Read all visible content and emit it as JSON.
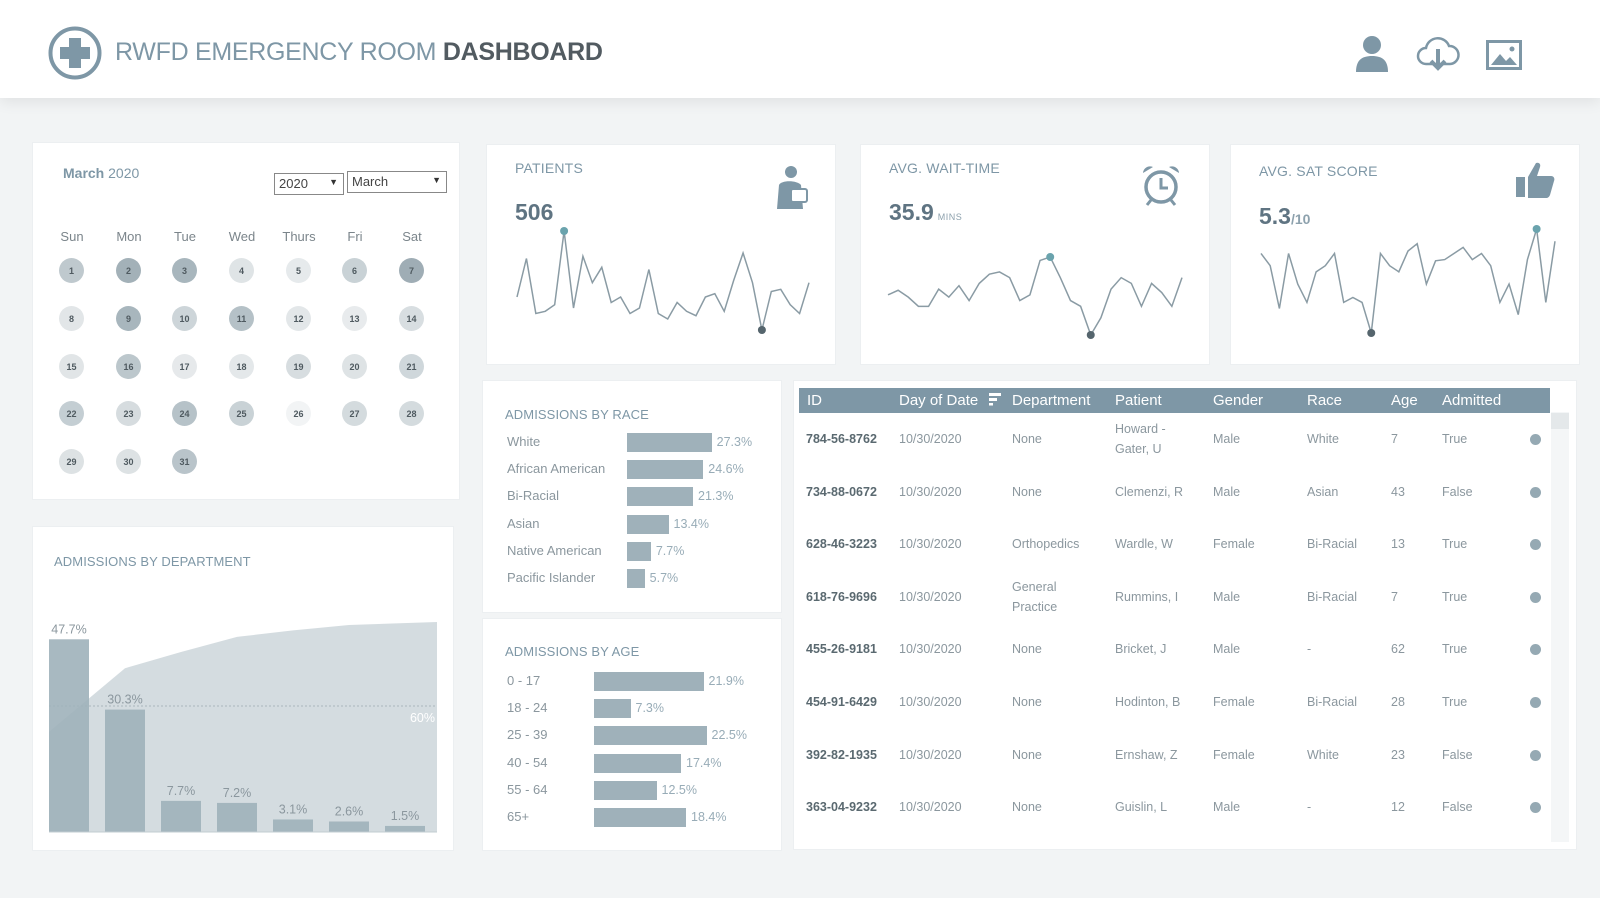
{
  "header": {
    "title_light": "RWFD EMERGENCY ROOM",
    "title_bold": "DASHBOARD",
    "icons": [
      "medical-cross-icon",
      "user-icon",
      "cloud-download-icon",
      "image-icon"
    ]
  },
  "calendar": {
    "month": "March",
    "year": "2020",
    "year_select": "2020",
    "month_select": "March",
    "weekdays": [
      "Sun",
      "Mon",
      "Tue",
      "Wed",
      "Thurs",
      "Fri",
      "Sat"
    ],
    "days": [
      "1",
      "2",
      "3",
      "4",
      "5",
      "6",
      "7",
      "8",
      "9",
      "10",
      "11",
      "12",
      "13",
      "14",
      "15",
      "16",
      "17",
      "18",
      "19",
      "20",
      "21",
      "22",
      "23",
      "24",
      "25",
      "26",
      "27",
      "28",
      "29",
      "30",
      "31"
    ]
  },
  "kpis": {
    "patients": {
      "label": "PATIENTS",
      "value": "506",
      "icon": "patient-icon",
      "series": [
        35,
        70,
        20,
        22,
        28,
        95,
        25,
        72,
        48,
        62,
        30,
        35,
        20,
        25,
        60,
        20,
        15,
        30,
        22,
        18,
        35,
        38,
        22,
        50,
        75,
        48,
        5,
        40,
        42,
        28,
        20,
        48
      ]
    },
    "wait": {
      "label": "AVG. WAIT-TIME",
      "value": "35.9",
      "unit": "MINS",
      "icon": "alarm-clock-icon",
      "series": [
        40,
        44,
        38,
        30,
        30,
        45,
        38,
        48,
        35,
        50,
        58,
        60,
        55,
        35,
        40,
        70,
        73,
        55,
        35,
        30,
        5,
        20,
        45,
        55,
        50,
        30,
        50,
        42,
        30,
        55
      ]
    },
    "sat": {
      "label": "AVG. SAT SCORE",
      "value": "5.3",
      "unit": "/10",
      "icon": "thumbs-up-icon",
      "series": [
        80,
        70,
        35,
        80,
        55,
        40,
        65,
        70,
        80,
        40,
        44,
        40,
        15,
        80,
        70,
        65,
        82,
        88,
        55,
        74,
        75,
        80,
        85,
        75,
        80,
        70,
        40,
        55,
        30,
        75,
        100,
        40,
        90
      ]
    }
  },
  "race": {
    "title": "ADMISSIONS BY RACE",
    "items": [
      {
        "label": "White",
        "value": 27.3,
        "text": "27.3%"
      },
      {
        "label": "African American",
        "value": 24.6,
        "text": "24.6%"
      },
      {
        "label": "Bi-Racial",
        "value": 21.3,
        "text": "21.3%"
      },
      {
        "label": "Asian",
        "value": 13.4,
        "text": "13.4%"
      },
      {
        "label": "Native American",
        "value": 7.7,
        "text": "7.7%"
      },
      {
        "label": "Pacific Islander",
        "value": 5.7,
        "text": "5.7%"
      }
    ]
  },
  "age": {
    "title": "ADMISSIONS BY AGE",
    "items": [
      {
        "label": "0 - 17",
        "value": 21.9,
        "text": "21.9%"
      },
      {
        "label": "18 - 24",
        "value": 7.3,
        "text": "7.3%"
      },
      {
        "label": "25 - 39",
        "value": 22.5,
        "text": "22.5%"
      },
      {
        "label": "40 - 54",
        "value": 17.4,
        "text": "17.4%"
      },
      {
        "label": "55 - 64",
        "value": 12.5,
        "text": "12.5%"
      },
      {
        "label": "65+",
        "value": 18.4,
        "text": "18.4%"
      }
    ]
  },
  "department": {
    "title": "ADMISSIONS BY DEPARTMENT",
    "threshold_label": "60%"
  },
  "chart_data": {
    "type": "bar",
    "title": "ADMISSIONS BY DEPARTMENT",
    "xlabel": "",
    "ylabel": "",
    "ylim": [
      0,
      50
    ],
    "values": [
      47.7,
      30.3,
      7.7,
      7.2,
      3.1,
      2.6,
      1.5
    ],
    "value_labels": [
      "47.7%",
      "30.3%",
      "7.7%",
      "7.2%",
      "3.1%",
      "2.6%",
      "1.5%"
    ],
    "cumulative": [
      47.7,
      78.0,
      85.7,
      92.9,
      96.0,
      98.6,
      100.0
    ],
    "reference_line": 60,
    "grid": false
  },
  "table": {
    "headers": [
      "ID",
      "Day of Date",
      "Department",
      "Patient",
      "Gender",
      "Race",
      "Age",
      "Admitted"
    ],
    "rows": [
      {
        "id": "784-56-8762",
        "date": "10/30/2020",
        "dept": "None",
        "patient": "Howard -\nGater, U",
        "gender": "Male",
        "race": "White",
        "age": "7",
        "admitted": "True"
      },
      {
        "id": "734-88-0672",
        "date": "10/30/2020",
        "dept": "None",
        "patient": "Clemenzi, R",
        "gender": "Male",
        "race": "Asian",
        "age": "43",
        "admitted": "False"
      },
      {
        "id": "628-46-3223",
        "date": "10/30/2020",
        "dept": "Orthopedics",
        "patient": "Wardle, W",
        "gender": "Female",
        "race": "Bi-Racial",
        "age": "13",
        "admitted": "True"
      },
      {
        "id": "618-76-9696",
        "date": "10/30/2020",
        "dept": "General\nPractice",
        "patient": "Rummins, I",
        "gender": "Male",
        "race": "Bi-Racial",
        "age": "7",
        "admitted": "True"
      },
      {
        "id": "455-26-9181",
        "date": "10/30/2020",
        "dept": "None",
        "patient": "Bricket, J",
        "gender": "Male",
        "race": "-",
        "age": "62",
        "admitted": "True"
      },
      {
        "id": "454-91-6429",
        "date": "10/30/2020",
        "dept": "None",
        "patient": "Hodinton, B",
        "gender": "Female",
        "race": "Bi-Racial",
        "age": "28",
        "admitted": "True"
      },
      {
        "id": "392-82-1935",
        "date": "10/30/2020",
        "dept": "None",
        "patient": "Ernshaw, Z",
        "gender": "Female",
        "race": "White",
        "age": "23",
        "admitted": "False"
      },
      {
        "id": "363-04-9232",
        "date": "10/30/2020",
        "dept": "None",
        "patient": "Guislin, L",
        "gender": "Male",
        "race": "-",
        "age": "12",
        "admitted": "False"
      }
    ]
  },
  "colors": {
    "accent": "#7e97a6",
    "bar": "#9fb1ba",
    "text": "#8b979e",
    "dark": "#525b61"
  }
}
